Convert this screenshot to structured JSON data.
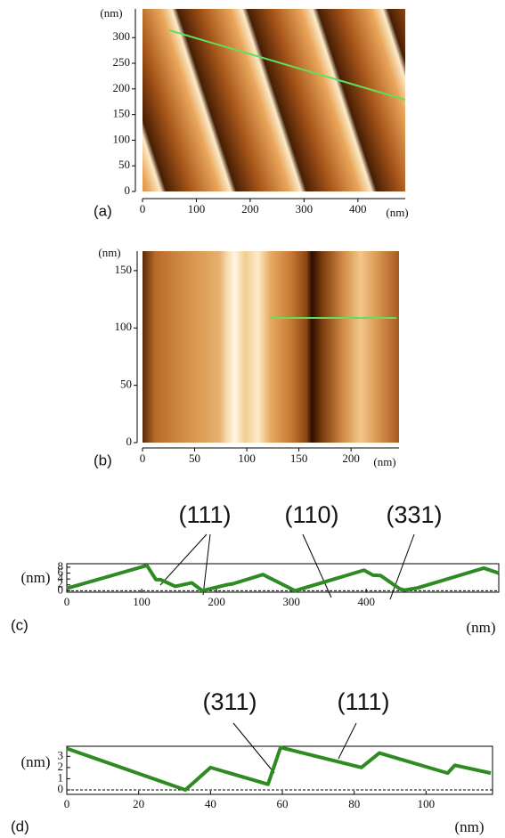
{
  "chart_data": [
    {
      "type": "image",
      "panel": "(a)",
      "x_label": "(nm)",
      "y_label": "(nm)",
      "xlim": [
        0,
        488
      ],
      "ylim": [
        0,
        356
      ],
      "xticks": [
        0,
        100,
        200,
        300,
        400
      ],
      "yticks": [
        0,
        50,
        100,
        150,
        200,
        250,
        300
      ]
    },
    {
      "type": "image",
      "panel": "(b)",
      "x_label": "(nm)",
      "y_label": "(nm)",
      "xlim": [
        0,
        246
      ],
      "ylim": [
        0,
        167
      ],
      "xticks": [
        0,
        50,
        100,
        150,
        200
      ],
      "yticks": [
        0,
        50,
        100,
        150
      ]
    },
    {
      "type": "line",
      "panel": "(c)",
      "x_label": "(nm)",
      "y_label": "(nm)",
      "x": [
        0,
        107,
        119,
        125,
        145,
        167,
        181,
        215,
        221,
        262,
        305,
        397,
        409,
        419,
        445,
        451,
        469,
        557,
        577
      ],
      "series": [
        {
          "color": "#2e8b22",
          "values": [
            0.8,
            8.6,
            3.8,
            3.8,
            1.5,
            2.7,
            0,
            2.1,
            2.3,
            5.5,
            0,
            7.0,
            5.3,
            5.2,
            0.6,
            0.2,
            1.0,
            7.7,
            6.0
          ]
        }
      ],
      "xlim": [
        0,
        577
      ],
      "ylim": [
        -0.5,
        9.2
      ],
      "xticks": [
        0,
        100,
        200,
        300,
        400
      ],
      "yticks": [
        0,
        2,
        4,
        6,
        8
      ],
      "annotations": [
        "(111)",
        "(110)",
        "(331)"
      ]
    },
    {
      "type": "line",
      "panel": "(d)",
      "x_label": "(nm)",
      "y_label": "(nm)",
      "x": [
        0,
        33,
        40,
        56,
        59.5,
        82,
        87,
        106,
        108,
        118
      ],
      "series": [
        {
          "color": "#2e8b22",
          "values": [
            3.7,
            0,
            2.0,
            0.5,
            3.8,
            2.0,
            3.3,
            1.5,
            2.2,
            1.5
          ]
        }
      ],
      "xlim": [
        0,
        118.5
      ],
      "ylim": [
        -0.4,
        3.9
      ],
      "xticks": [
        0,
        20,
        40,
        60,
        80,
        100
      ],
      "yticks": [
        0,
        1,
        2,
        3
      ],
      "annotations": [
        "(311)",
        "(111)"
      ]
    }
  ]
}
